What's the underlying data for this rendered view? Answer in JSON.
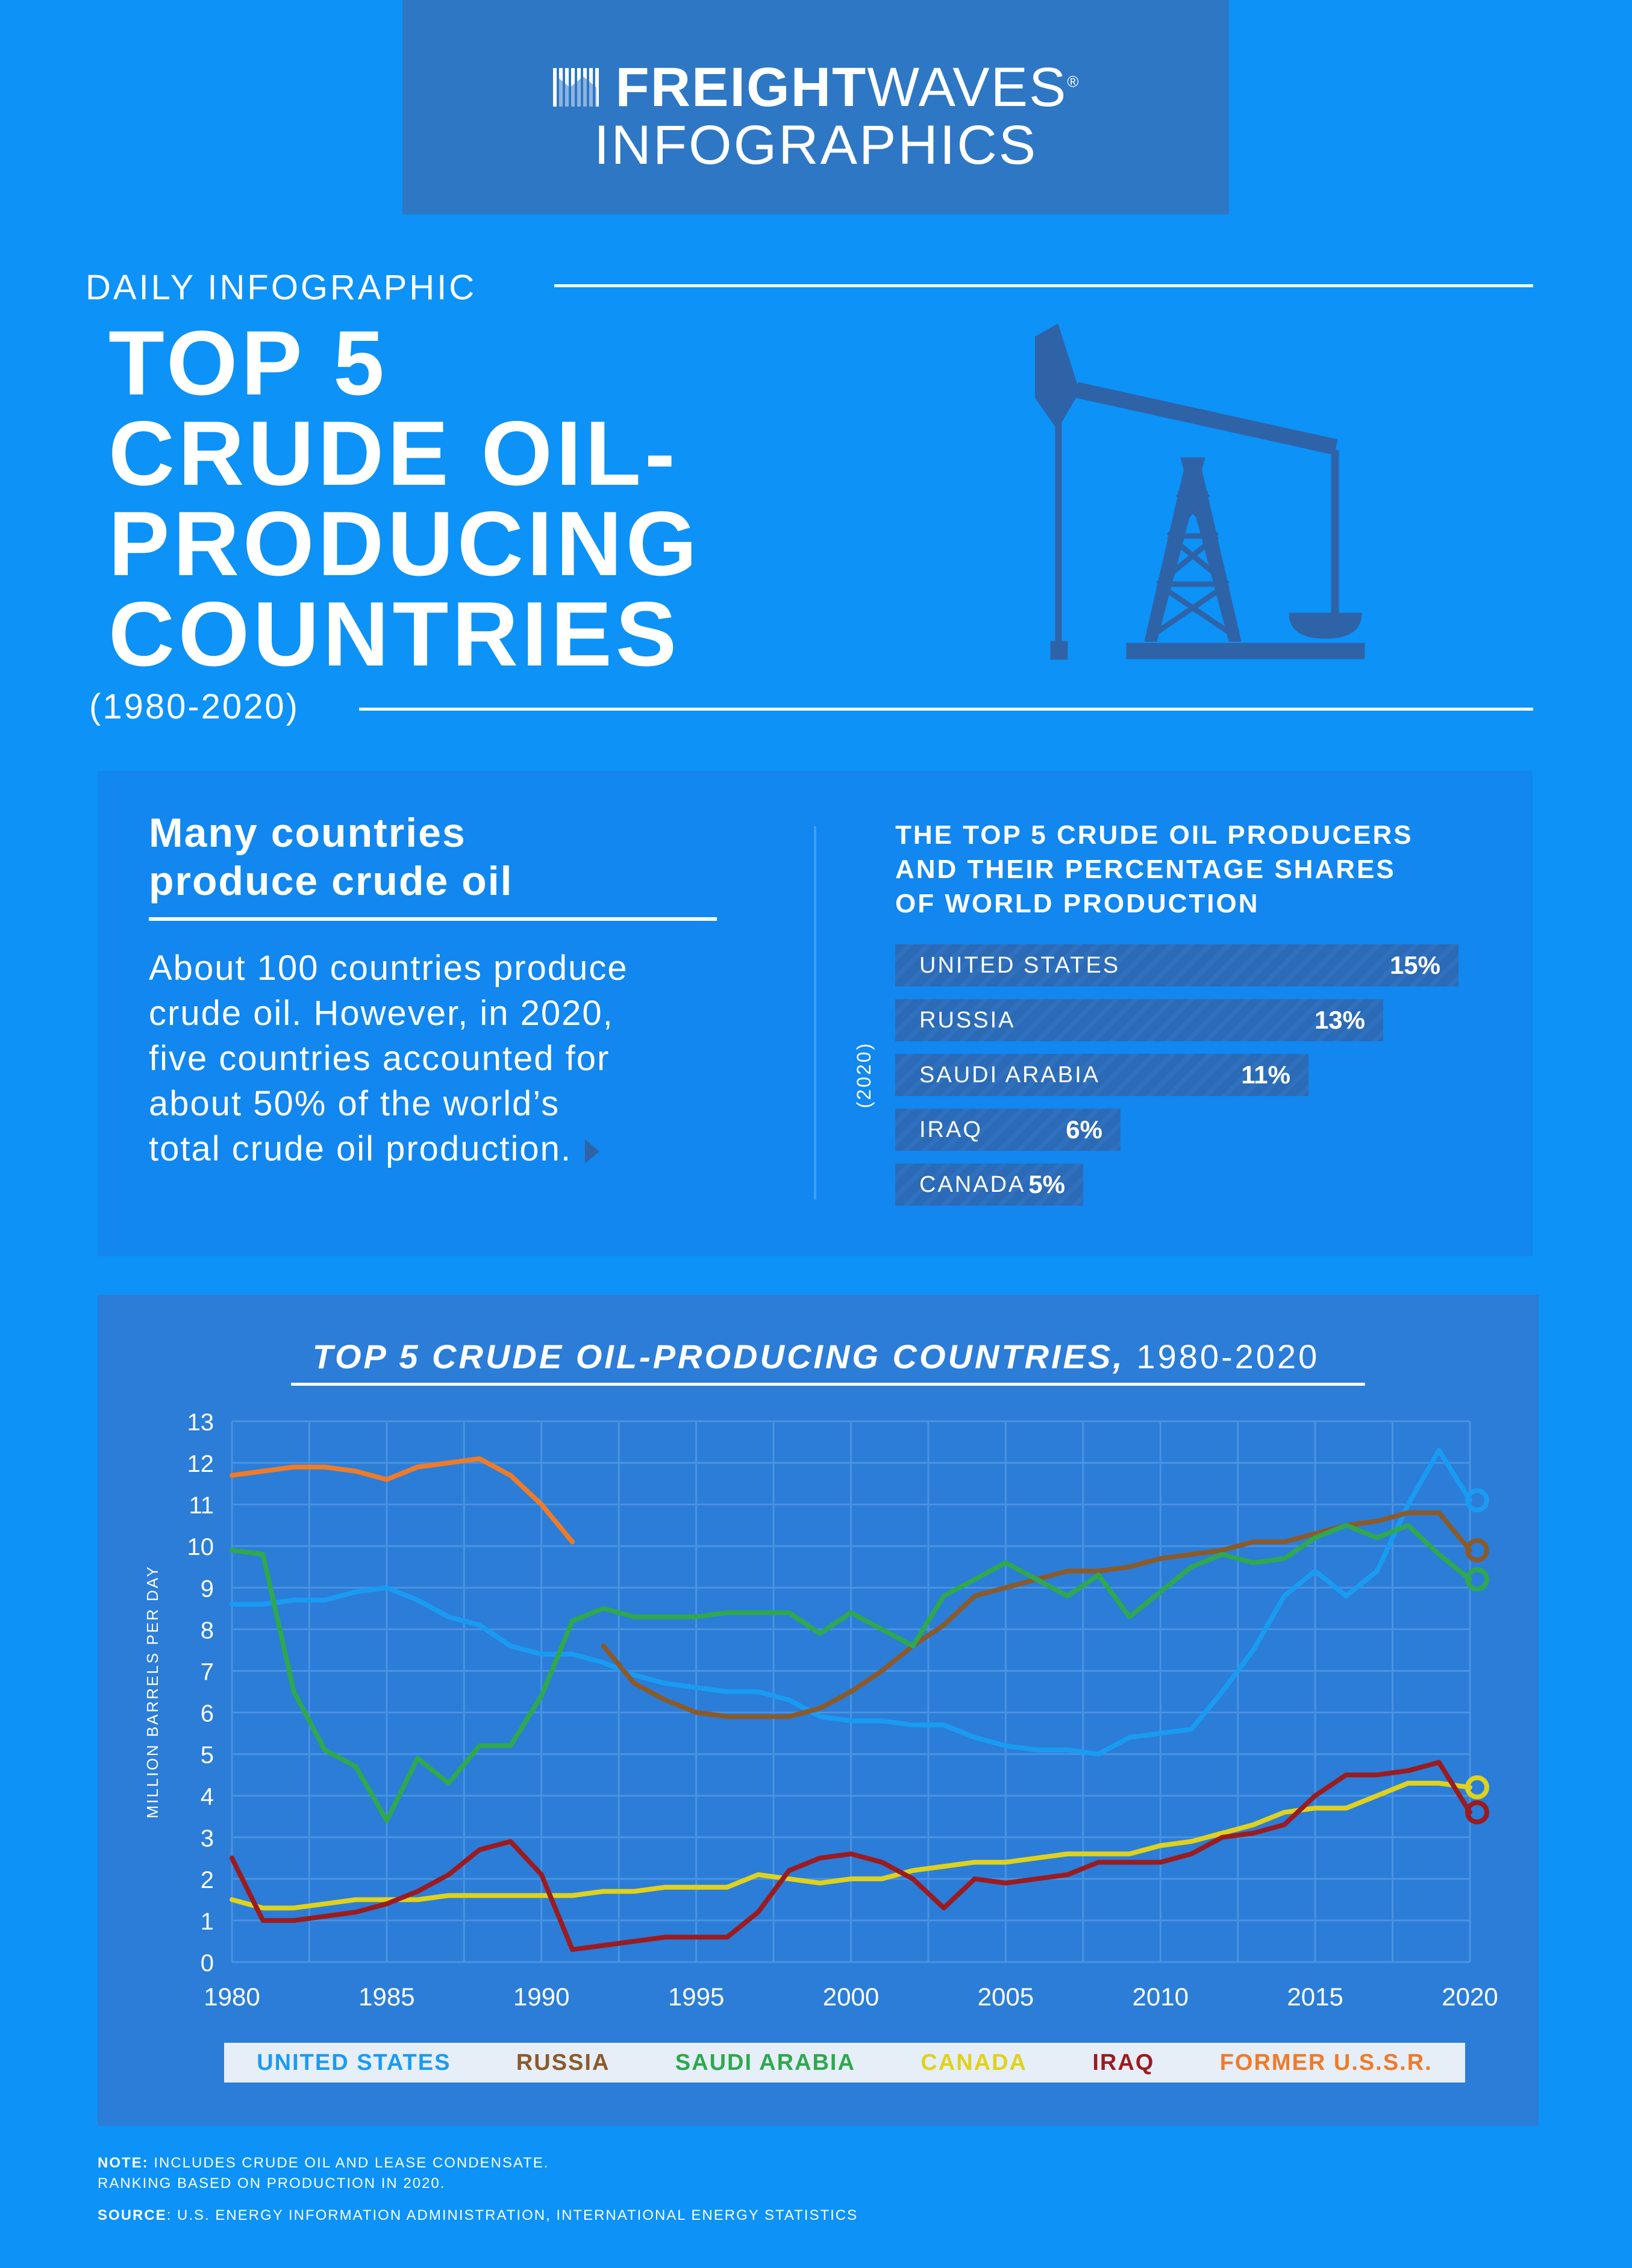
{
  "header": {
    "brand_bold": "FREIGHT",
    "brand_light": "WAVES",
    "brand_mark": "®",
    "subtitle": "INFOGRAPHICS"
  },
  "intro": {
    "kicker": "DAILY INFOGRAPHIC",
    "title_lines": [
      "TOP 5",
      "CRUDE OIL-",
      "PRODUCING",
      "COUNTRIES"
    ],
    "years": "(1980-2020)"
  },
  "info": {
    "heading_lines": [
      "Many countries",
      "produce crude oil"
    ],
    "body_lines": [
      "About 100 countries produce",
      "crude oil. However, in 2020,",
      "five countries accounted for",
      "about 50% of the world’s",
      "total crude oil production."
    ]
  },
  "shares": {
    "title_lines": [
      "THE TOP 5 CRUDE OIL PRODUCERS",
      "AND THEIR PERCENTAGE SHARES",
      "OF WORLD PRODUCTION"
    ],
    "side_label": "(2020)",
    "items": [
      {
        "country": "UNITED STATES",
        "value_label": "15%",
        "value": 15
      },
      {
        "country": "RUSSIA",
        "value_label": "13%",
        "value": 13
      },
      {
        "country": "SAUDI ARABIA",
        "value_label": "11%",
        "value": 11
      },
      {
        "country": "IRAQ",
        "value_label": "6%",
        "value": 6
      },
      {
        "country": "CANADA",
        "value_label": "5%",
        "value": 5
      }
    ]
  },
  "chart_data": {
    "type": "line",
    "title_italic": "TOP 5 CRUDE OIL-PRODUCING COUNTRIES,",
    "title_rest": " 1980-2020",
    "xlabel": "",
    "ylabel": "MILLION BARRELS PER DAY",
    "xlim": [
      1980,
      2020
    ],
    "ylim": [
      0,
      13
    ],
    "x_ticks": [
      1980,
      1985,
      1990,
      1995,
      2000,
      2005,
      2010,
      2015,
      2020
    ],
    "y_ticks": [
      0,
      1,
      2,
      3,
      4,
      5,
      6,
      7,
      8,
      9,
      10,
      11,
      12,
      13
    ],
    "grid": true,
    "legend": "bottom",
    "series": [
      {
        "name": "UNITED STATES",
        "color": "#1a9bf2",
        "end_marker": true,
        "points": [
          [
            1980,
            8.6
          ],
          [
            1981,
            8.6
          ],
          [
            1982,
            8.7
          ],
          [
            1983,
            8.7
          ],
          [
            1984,
            8.9
          ],
          [
            1985,
            9.0
          ],
          [
            1986,
            8.7
          ],
          [
            1987,
            8.3
          ],
          [
            1988,
            8.1
          ],
          [
            1989,
            7.6
          ],
          [
            1990,
            7.4
          ],
          [
            1991,
            7.4
          ],
          [
            1992,
            7.2
          ],
          [
            1993,
            6.9
          ],
          [
            1994,
            6.7
          ],
          [
            1995,
            6.6
          ],
          [
            1996,
            6.5
          ],
          [
            1997,
            6.5
          ],
          [
            1998,
            6.3
          ],
          [
            1999,
            5.9
          ],
          [
            2000,
            5.8
          ],
          [
            2001,
            5.8
          ],
          [
            2002,
            5.7
          ],
          [
            2003,
            5.7
          ],
          [
            2004,
            5.4
          ],
          [
            2005,
            5.2
          ],
          [
            2006,
            5.1
          ],
          [
            2007,
            5.1
          ],
          [
            2008,
            5.0
          ],
          [
            2009,
            5.4
          ],
          [
            2010,
            5.5
          ],
          [
            2011,
            5.6
          ],
          [
            2012,
            6.5
          ],
          [
            2013,
            7.5
          ],
          [
            2014,
            8.8
          ],
          [
            2015,
            9.4
          ],
          [
            2016,
            8.8
          ],
          [
            2017,
            9.4
          ],
          [
            2018,
            11.0
          ],
          [
            2019,
            12.3
          ],
          [
            2020,
            11.1
          ]
        ]
      },
      {
        "name": "RUSSIA",
        "color": "#8b5a2b",
        "end_marker": true,
        "points": [
          [
            1992,
            7.6
          ],
          [
            1993,
            6.7
          ],
          [
            1994,
            6.3
          ],
          [
            1995,
            6.0
          ],
          [
            1996,
            5.9
          ],
          [
            1997,
            5.9
          ],
          [
            1998,
            5.9
          ],
          [
            1999,
            6.1
          ],
          [
            2000,
            6.5
          ],
          [
            2001,
            7.0
          ],
          [
            2002,
            7.6
          ],
          [
            2003,
            8.1
          ],
          [
            2004,
            8.8
          ],
          [
            2005,
            9.0
          ],
          [
            2006,
            9.2
          ],
          [
            2007,
            9.4
          ],
          [
            2008,
            9.4
          ],
          [
            2009,
            9.5
          ],
          [
            2010,
            9.7
          ],
          [
            2011,
            9.8
          ],
          [
            2012,
            9.9
          ],
          [
            2013,
            10.1
          ],
          [
            2014,
            10.1
          ],
          [
            2015,
            10.3
          ],
          [
            2016,
            10.5
          ],
          [
            2017,
            10.6
          ],
          [
            2018,
            10.8
          ],
          [
            2019,
            10.8
          ],
          [
            2020,
            9.9
          ]
        ]
      },
      {
        "name": "SAUDI ARABIA",
        "color": "#2fa84f",
        "end_marker": true,
        "points": [
          [
            1980,
            9.9
          ],
          [
            1981,
            9.8
          ],
          [
            1982,
            6.5
          ],
          [
            1983,
            5.1
          ],
          [
            1984,
            4.7
          ],
          [
            1985,
            3.4
          ],
          [
            1986,
            4.9
          ],
          [
            1987,
            4.3
          ],
          [
            1988,
            5.2
          ],
          [
            1989,
            5.2
          ],
          [
            1990,
            6.4
          ],
          [
            1991,
            8.2
          ],
          [
            1992,
            8.5
          ],
          [
            1993,
            8.3
          ],
          [
            1994,
            8.3
          ],
          [
            1995,
            8.3
          ],
          [
            1996,
            8.4
          ],
          [
            1997,
            8.4
          ],
          [
            1998,
            8.4
          ],
          [
            1999,
            7.9
          ],
          [
            2000,
            8.4
          ],
          [
            2001,
            8.0
          ],
          [
            2002,
            7.6
          ],
          [
            2003,
            8.8
          ],
          [
            2004,
            9.2
          ],
          [
            2005,
            9.6
          ],
          [
            2006,
            9.2
          ],
          [
            2007,
            8.8
          ],
          [
            2008,
            9.3
          ],
          [
            2009,
            8.3
          ],
          [
            2010,
            8.9
          ],
          [
            2011,
            9.5
          ],
          [
            2012,
            9.8
          ],
          [
            2013,
            9.6
          ],
          [
            2014,
            9.7
          ],
          [
            2015,
            10.2
          ],
          [
            2016,
            10.5
          ],
          [
            2017,
            10.2
          ],
          [
            2018,
            10.5
          ],
          [
            2019,
            9.8
          ],
          [
            2020,
            9.2
          ]
        ]
      },
      {
        "name": "CANADA",
        "color": "#e0d21c",
        "end_marker": true,
        "points": [
          [
            1980,
            1.5
          ],
          [
            1981,
            1.3
          ],
          [
            1982,
            1.3
          ],
          [
            1983,
            1.4
          ],
          [
            1984,
            1.5
          ],
          [
            1985,
            1.5
          ],
          [
            1986,
            1.5
          ],
          [
            1987,
            1.6
          ],
          [
            1988,
            1.6
          ],
          [
            1989,
            1.6
          ],
          [
            1990,
            1.6
          ],
          [
            1991,
            1.6
          ],
          [
            1992,
            1.7
          ],
          [
            1993,
            1.7
          ],
          [
            1994,
            1.8
          ],
          [
            1995,
            1.8
          ],
          [
            1996,
            1.8
          ],
          [
            1997,
            2.1
          ],
          [
            1998,
            2.0
          ],
          [
            1999,
            1.9
          ],
          [
            2000,
            2.0
          ],
          [
            2001,
            2.0
          ],
          [
            2002,
            2.2
          ],
          [
            2003,
            2.3
          ],
          [
            2004,
            2.4
          ],
          [
            2005,
            2.4
          ],
          [
            2006,
            2.5
          ],
          [
            2007,
            2.6
          ],
          [
            2008,
            2.6
          ],
          [
            2009,
            2.6
          ],
          [
            2010,
            2.8
          ],
          [
            2011,
            2.9
          ],
          [
            2012,
            3.1
          ],
          [
            2013,
            3.3
          ],
          [
            2014,
            3.6
          ],
          [
            2015,
            3.7
          ],
          [
            2016,
            3.7
          ],
          [
            2017,
            4.0
          ],
          [
            2018,
            4.3
          ],
          [
            2019,
            4.3
          ],
          [
            2020,
            4.2
          ]
        ]
      },
      {
        "name": "IRAQ",
        "color": "#9b1b1f",
        "end_marker": true,
        "points": [
          [
            1980,
            2.5
          ],
          [
            1981,
            1.0
          ],
          [
            1982,
            1.0
          ],
          [
            1983,
            1.1
          ],
          [
            1984,
            1.2
          ],
          [
            1985,
            1.4
          ],
          [
            1986,
            1.7
          ],
          [
            1987,
            2.1
          ],
          [
            1988,
            2.7
          ],
          [
            1989,
            2.9
          ],
          [
            1990,
            2.1
          ],
          [
            1991,
            0.3
          ],
          [
            1992,
            0.4
          ],
          [
            1993,
            0.5
          ],
          [
            1994,
            0.6
          ],
          [
            1995,
            0.6
          ],
          [
            1996,
            0.6
          ],
          [
            1997,
            1.2
          ],
          [
            1998,
            2.2
          ],
          [
            1999,
            2.5
          ],
          [
            2000,
            2.6
          ],
          [
            2001,
            2.4
          ],
          [
            2002,
            2.0
          ],
          [
            2003,
            1.3
          ],
          [
            2004,
            2.0
          ],
          [
            2005,
            1.9
          ],
          [
            2006,
            2.0
          ],
          [
            2007,
            2.1
          ],
          [
            2008,
            2.4
          ],
          [
            2009,
            2.4
          ],
          [
            2010,
            2.4
          ],
          [
            2011,
            2.6
          ],
          [
            2012,
            3.0
          ],
          [
            2013,
            3.1
          ],
          [
            2014,
            3.3
          ],
          [
            2015,
            4.0
          ],
          [
            2016,
            4.5
          ],
          [
            2017,
            4.5
          ],
          [
            2018,
            4.6
          ],
          [
            2019,
            4.8
          ],
          [
            2020,
            3.6
          ]
        ]
      },
      {
        "name": "FORMER U.S.S.R.",
        "color": "#ef7b28",
        "end_marker": false,
        "points": [
          [
            1980,
            11.7
          ],
          [
            1981,
            11.8
          ],
          [
            1982,
            11.9
          ],
          [
            1983,
            11.9
          ],
          [
            1984,
            11.8
          ],
          [
            1985,
            11.6
          ],
          [
            1986,
            11.9
          ],
          [
            1987,
            12.0
          ],
          [
            1988,
            12.1
          ],
          [
            1989,
            11.7
          ],
          [
            1990,
            11.0
          ],
          [
            1991,
            10.1
          ]
        ]
      }
    ]
  },
  "footer": {
    "note_label": "NOTE:",
    "note_text": " INCLUDES CRUDE OIL AND LEASE CONDENSATE.",
    "note_text2": "RANKING BASED ON PRODUCTION IN 2020.",
    "source_label": "SOURCE",
    "source_text": ": U.S. ENERGY INFORMATION ADMINISTRATION, INTERNATIONAL ENERGY STATISTICS"
  }
}
